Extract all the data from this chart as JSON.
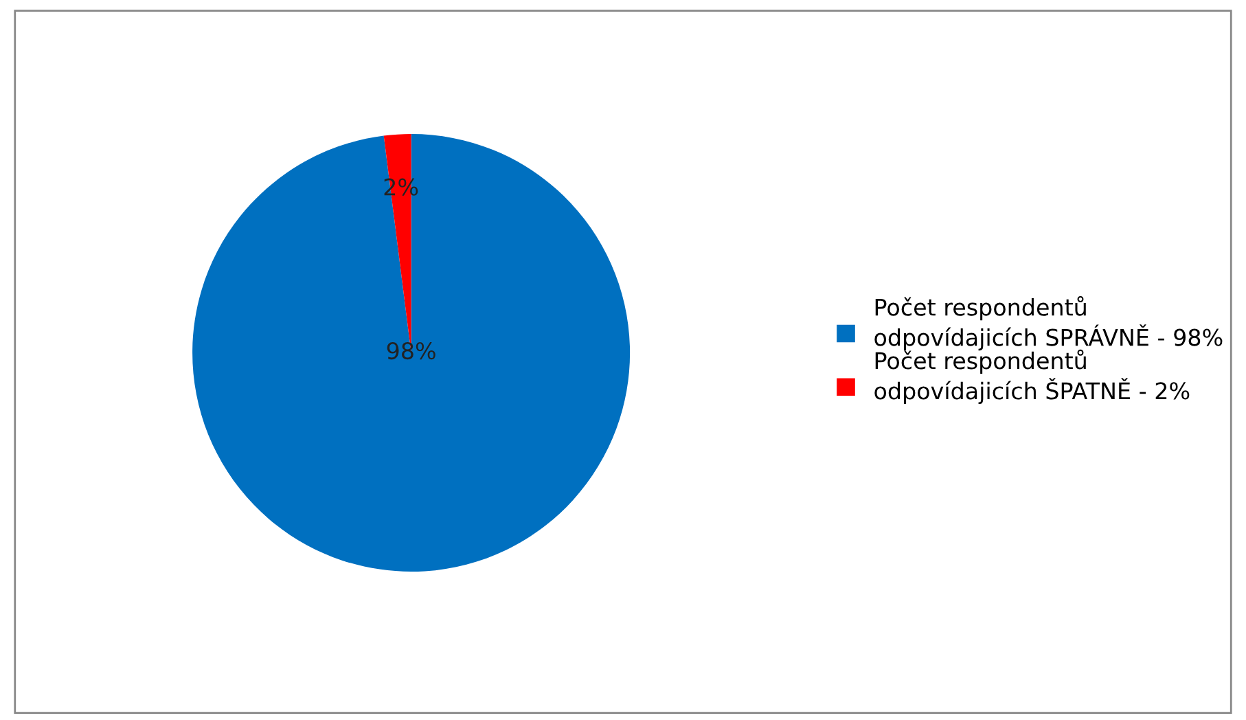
{
  "chart_data": {
    "type": "pie",
    "categories": [
      "Počet respondentů odpovídajicích SPRÁVNĚ - 98%",
      "Počet respondentů odpovídajicích ŠPATNĚ - 2%"
    ],
    "values": [
      98,
      2
    ],
    "value_labels": [
      "98%",
      "2%"
    ],
    "colors": [
      "#0070c0",
      "#ff0000"
    ],
    "legend": "right"
  }
}
